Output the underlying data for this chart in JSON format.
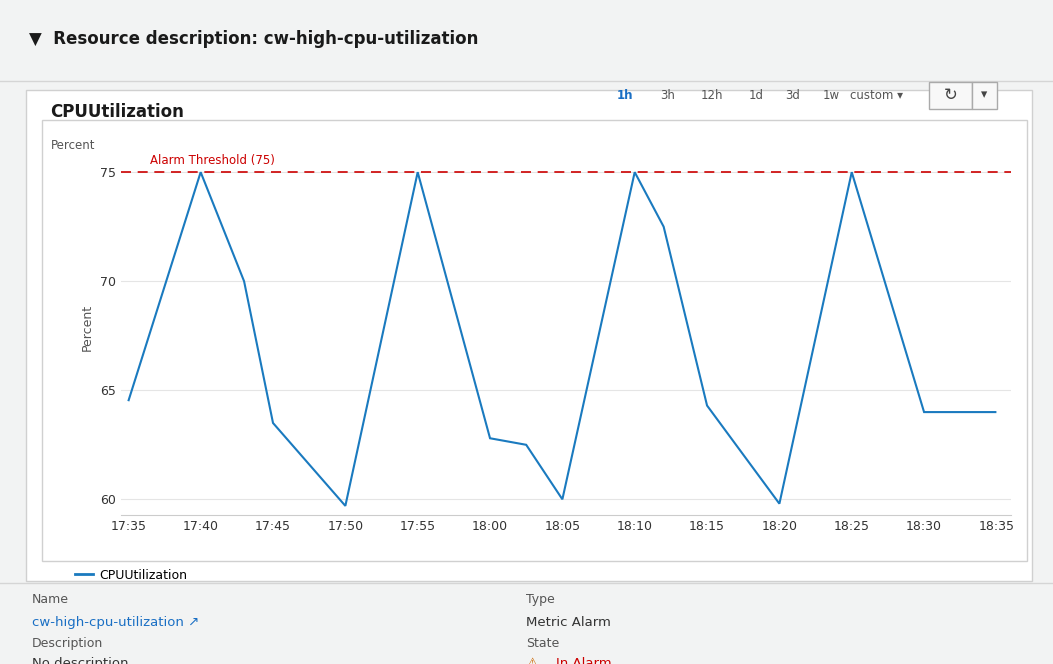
{
  "title": "CPUUtilization",
  "ylabel": "Percent",
  "alarm_threshold": 75,
  "alarm_label": "Alarm Threshold (75)",
  "line_color": "#1a7abf",
  "alarm_color": "#cc0000",
  "background_color": "#ffffff",
  "outer_bg": "#f2f3f3",
  "ylim": [
    59.3,
    76.5
  ],
  "yticks": [
    60,
    65,
    70,
    75
  ],
  "x_labels": [
    "17:35",
    "17:40",
    "17:45",
    "17:50",
    "17:55",
    "18:00",
    "18:05",
    "18:10",
    "18:15",
    "18:20",
    "18:25",
    "18:30",
    "18:35"
  ],
  "page_title": "Resource description: cw-high-cpu-utilization",
  "time_buttons": [
    "1h",
    "3h",
    "12h",
    "1d",
    "3d",
    "1w",
    "custom ▾"
  ],
  "legend_label": "CPUUtilization",
  "legend_color": "#1a7abf",
  "name_label": "Name",
  "name_value": "cw-high-cpu-utilization ↗",
  "type_label": "Type",
  "type_value": "Metric Alarm",
  "desc_label": "Description",
  "desc_value": "No description",
  "state_label": "State",
  "state_value": "In Alarm",
  "state_color": "#cc0000",
  "x_pts": [
    0,
    5,
    8,
    10,
    15,
    20,
    25,
    27.5,
    30,
    35,
    37,
    40,
    45,
    50,
    55,
    60
  ],
  "y_pts": [
    64.5,
    75.0,
    70.0,
    63.5,
    59.7,
    75.0,
    62.8,
    62.5,
    60.0,
    75.0,
    72.5,
    64.3,
    59.8,
    75.0,
    64.0,
    64.0
  ]
}
